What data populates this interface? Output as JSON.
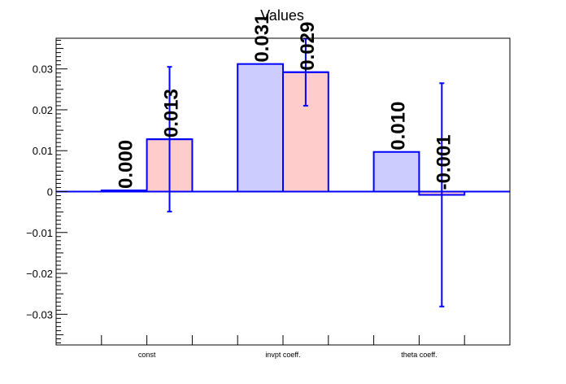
{
  "chart_data": {
    "type": "bar",
    "title": "Values",
    "categories": [
      "const",
      "invpt coeff.",
      "theta coeff."
    ],
    "series": [
      {
        "values": [
          0.0003,
          0.0312,
          0.0097
        ],
        "value_labels": [
          "0.000",
          "0.031",
          "0.010"
        ],
        "errors": [
          0,
          0,
          0
        ],
        "fill": "#ccccff",
        "stroke": "#0000ff"
      },
      {
        "values": [
          0.0128,
          0.0292,
          -0.0008
        ],
        "value_labels": [
          "0.013",
          "0.029",
          "-0.001"
        ],
        "errors": [
          0.0177,
          0.0082,
          0.0273
        ],
        "fill": "#ffcccc",
        "stroke": "#0000ff"
      }
    ],
    "ylim": [
      -0.0375,
      0.0375
    ],
    "yticks": [
      -0.03,
      -0.02,
      -0.01,
      0,
      0.01,
      0.02,
      0.03
    ],
    "ytick_labels": [
      "−0.03",
      "−0.02",
      "−0.01",
      "0",
      "0.01",
      "0.02",
      "0.03"
    ],
    "xlabel": "",
    "ylabel": "",
    "grid": false,
    "colors": {
      "axis": "#000000",
      "baseline": "#0000ff",
      "error": "#0000ff"
    }
  }
}
